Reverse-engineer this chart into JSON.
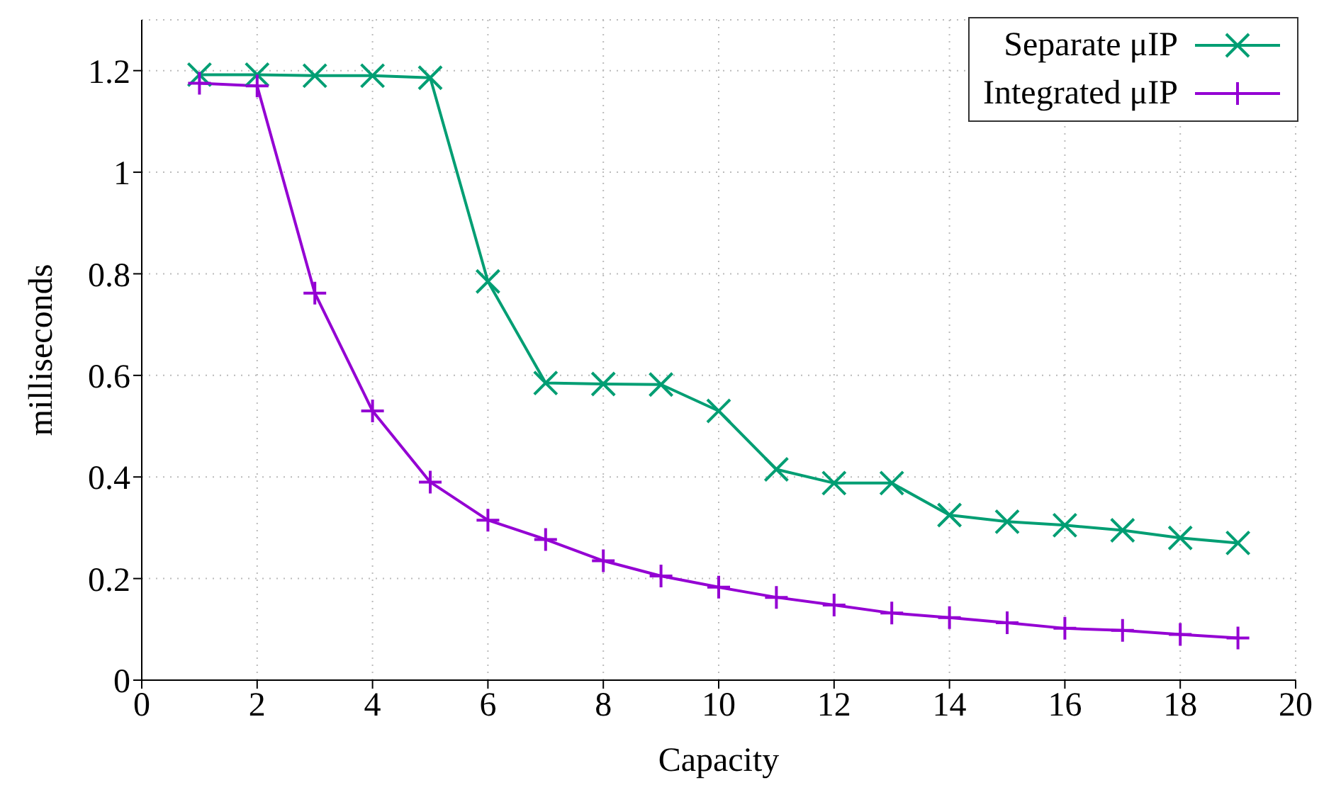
{
  "chart_data": {
    "type": "line",
    "xlabel": "Capacity",
    "ylabel": "milliseconds",
    "x": [
      1,
      2,
      3,
      4,
      5,
      6,
      7,
      8,
      9,
      10,
      11,
      12,
      13,
      14,
      15,
      16,
      17,
      18,
      19
    ],
    "series": [
      {
        "name": "Separate μIP",
        "color": "#009e73",
        "marker": "x",
        "values": [
          1.192,
          1.192,
          1.19,
          1.19,
          1.186,
          0.785,
          0.585,
          0.583,
          0.582,
          0.53,
          0.415,
          0.388,
          0.388,
          0.325,
          0.312,
          0.305,
          0.295,
          0.28,
          0.27
        ]
      },
      {
        "name": "Integrated μIP",
        "color": "#9400d3",
        "marker": "cross",
        "values": [
          1.175,
          1.17,
          0.762,
          0.53,
          0.39,
          0.315,
          0.277,
          0.235,
          0.205,
          0.183,
          0.163,
          0.148,
          0.132,
          0.123,
          0.113,
          0.102,
          0.098,
          0.09,
          0.083
        ]
      }
    ],
    "xlim": [
      0,
      20
    ],
    "xticks": [
      0,
      2,
      4,
      6,
      8,
      10,
      12,
      14,
      16,
      18,
      20
    ],
    "ylim": [
      0,
      1.3
    ],
    "yticks": [
      0,
      0.2,
      0.4,
      0.6,
      0.8,
      1,
      1.2
    ],
    "grid": true,
    "legend": "top right",
    "line_style": "solid"
  }
}
